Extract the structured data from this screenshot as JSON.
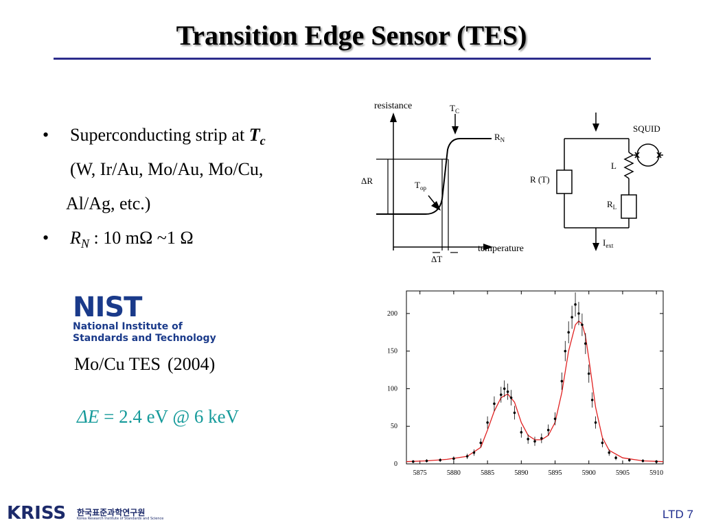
{
  "title": "Transition Edge Sensor (TES)",
  "bullets": {
    "b1_text": "Superconducting strip at ",
    "b1_var": "T",
    "b1_sub": "c",
    "b1_line2": "(W, Ir/Au, Mo/Au, Mo/Cu,",
    "b1_line3": "Al/Ag, etc.)",
    "b2_var": "R",
    "b2_sub": "N",
    "b2_text": " : 10 mΩ ~1 Ω",
    "bullet_char": "•"
  },
  "nist": {
    "logo": "NIST",
    "line1": "National Institute of",
    "line2": "Standards and Technology"
  },
  "caption": {
    "label": "Mo/Cu TES",
    "year": "(2004)"
  },
  "resolution": {
    "sym": "ΔE",
    "text": " = 2.4 eV @ 6 keV"
  },
  "transition_diagram": {
    "ylabel": "resistance",
    "xlabel": "temperature",
    "tc": "T",
    "tc_sub": "C",
    "rn": "R",
    "rn_sub": "N",
    "dr": "ΔR",
    "top": "T",
    "top_sub": "op",
    "dt": "ΔT"
  },
  "circuit": {
    "squid": "SQUID",
    "rt": "R (T)",
    "l": "L",
    "rl": "R",
    "rl_sub": "L",
    "iext": "I",
    "iext_sub": "ext"
  },
  "chart_data": {
    "type": "line",
    "title": "",
    "xlabel": "",
    "ylabel": "",
    "xlim": [
      5873,
      5911
    ],
    "ylim": [
      0,
      230
    ],
    "x_ticks": [
      5875,
      5880,
      5885,
      5890,
      5895,
      5900,
      5905,
      5910
    ],
    "y_ticks": [
      0,
      50,
      100,
      150,
      200
    ],
    "series": [
      {
        "style": "points-with-error-bars",
        "color": "#000000",
        "x": [
          5874,
          5876,
          5878,
          5880,
          5882,
          5883,
          5884,
          5885,
          5886,
          5887,
          5887.5,
          5888,
          5888.5,
          5889,
          5890,
          5891,
          5892,
          5893,
          5894,
          5895,
          5896,
          5896.5,
          5897,
          5897.5,
          5898,
          5898.5,
          5899,
          5899.5,
          5900,
          5900.5,
          5901,
          5902,
          5903,
          5904,
          5906,
          5908,
          5910
        ],
        "y": [
          3,
          4,
          5,
          7,
          10,
          15,
          28,
          55,
          80,
          92,
          100,
          96,
          88,
          68,
          42,
          33,
          30,
          34,
          45,
          60,
          110,
          150,
          175,
          195,
          212,
          200,
          185,
          160,
          120,
          85,
          55,
          28,
          15,
          8,
          5,
          4,
          3
        ]
      },
      {
        "style": "fit-curve",
        "color": "#e02020",
        "x": [
          5873,
          5876,
          5879,
          5882,
          5884,
          5885,
          5886,
          5887,
          5888,
          5889,
          5890,
          5891,
          5892,
          5893,
          5894,
          5895,
          5896,
          5897,
          5898,
          5898.5,
          5899,
          5899.5,
          5900,
          5901,
          5902,
          5903,
          5905,
          5908,
          5911
        ],
        "y": [
          3,
          4,
          6,
          10,
          22,
          45,
          70,
          88,
          93,
          82,
          55,
          38,
          32,
          32,
          38,
          55,
          95,
          150,
          185,
          190,
          186,
          170,
          140,
          75,
          35,
          18,
          8,
          4,
          3
        ]
      }
    ]
  },
  "footer": {
    "logo": "KRISS",
    "korean": "한국표준과학연구원",
    "english": "Korea Research Institute of Standards and Science",
    "slide": "LTD 7"
  }
}
